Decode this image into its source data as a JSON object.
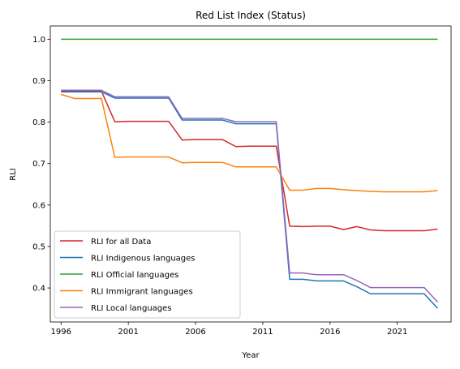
{
  "chart_data": {
    "type": "line",
    "title": "Red List Index (Status)",
    "xlabel": "Year",
    "ylabel": "RLI",
    "xlim": [
      1995.2,
      2025.0
    ],
    "ylim": [
      0.318,
      1.032
    ],
    "xticks": [
      1996,
      2001,
      2006,
      2011,
      2016,
      2021
    ],
    "yticks": [
      0.4,
      0.5,
      0.6,
      0.7,
      0.8,
      0.9,
      1.0
    ],
    "ytick_labels": [
      "0.4",
      "0.5",
      "0.6",
      "0.7",
      "0.8",
      "0.9",
      "1.0"
    ],
    "grid": false,
    "legend_position": "lower-left",
    "x": [
      1996,
      1997,
      1998,
      1999,
      2000,
      2001,
      2002,
      2003,
      2004,
      2005,
      2006,
      2007,
      2008,
      2009,
      2010,
      2011,
      2012,
      2013,
      2014,
      2015,
      2016,
      2017,
      2018,
      2019,
      2020,
      2021,
      2022,
      2023,
      2024
    ],
    "series": [
      {
        "name": "RLI for all Data",
        "color": "#d62728",
        "values": [
          0.875,
          0.875,
          0.875,
          0.875,
          0.801,
          0.802,
          0.802,
          0.802,
          0.802,
          0.757,
          0.758,
          0.758,
          0.758,
          0.741,
          0.742,
          0.742,
          0.742,
          0.549,
          0.548,
          0.549,
          0.549,
          0.541,
          0.548,
          0.54,
          0.538,
          0.538,
          0.538,
          0.538,
          0.542
        ]
      },
      {
        "name": "RLI Indigenous languages",
        "color": "#1f77b4",
        "values": [
          0.873,
          0.873,
          0.873,
          0.873,
          0.858,
          0.858,
          0.858,
          0.858,
          0.858,
          0.805,
          0.805,
          0.805,
          0.805,
          0.796,
          0.796,
          0.796,
          0.796,
          0.421,
          0.421,
          0.417,
          0.417,
          0.417,
          0.403,
          0.386,
          0.386,
          0.386,
          0.386,
          0.386,
          0.351
        ]
      },
      {
        "name": "RLI Official languages",
        "color": "#2ca02c",
        "values": [
          1.0,
          1.0,
          1.0,
          1.0,
          1.0,
          1.0,
          1.0,
          1.0,
          1.0,
          1.0,
          1.0,
          1.0,
          1.0,
          1.0,
          1.0,
          1.0,
          1.0,
          1.0,
          1.0,
          1.0,
          1.0,
          1.0,
          1.0,
          1.0,
          1.0,
          1.0,
          1.0,
          1.0,
          1.0
        ]
      },
      {
        "name": "RLI Immigrant languages",
        "color": "#ff7f0e",
        "values": [
          0.867,
          0.857,
          0.857,
          0.857,
          0.715,
          0.716,
          0.716,
          0.716,
          0.716,
          0.702,
          0.703,
          0.703,
          0.703,
          0.692,
          0.692,
          0.692,
          0.692,
          0.636,
          0.636,
          0.64,
          0.64,
          0.637,
          0.635,
          0.633,
          0.632,
          0.632,
          0.632,
          0.632,
          0.635
        ]
      },
      {
        "name": "RLI Local languages",
        "color": "#9467bd",
        "values": [
          0.877,
          0.877,
          0.877,
          0.877,
          0.861,
          0.861,
          0.861,
          0.861,
          0.861,
          0.809,
          0.809,
          0.809,
          0.809,
          0.801,
          0.801,
          0.801,
          0.801,
          0.436,
          0.436,
          0.432,
          0.432,
          0.432,
          0.418,
          0.401,
          0.401,
          0.401,
          0.401,
          0.401,
          0.366
        ]
      }
    ]
  }
}
